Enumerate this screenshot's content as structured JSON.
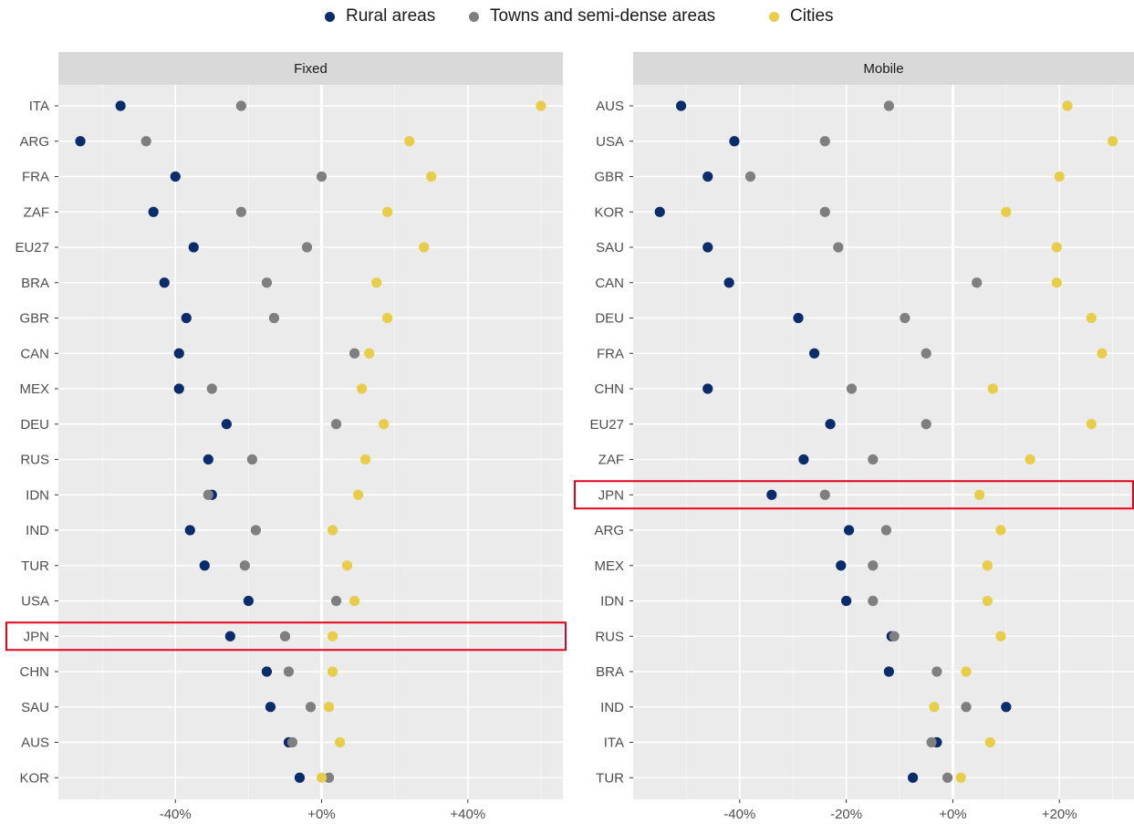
{
  "legend": [
    {
      "label": "Rural areas",
      "color": "#0b2c6b"
    },
    {
      "label": "Towns and semi-dense areas",
      "color": "#7f7f7f"
    },
    {
      "label": "Cities",
      "color": "#e8cd4a"
    }
  ],
  "chart_data": [
    {
      "type": "scatter",
      "title": "Fixed",
      "x_ticks": [
        {
          "value": -40,
          "label": "-40%"
        },
        {
          "value": 0,
          "label": "+0%"
        },
        {
          "value": 40,
          "label": "+40%"
        }
      ],
      "xlim": [
        -72,
        66
      ],
      "highlight": "JPN",
      "categories": [
        "ITA",
        "ARG",
        "FRA",
        "ZAF",
        "EU27",
        "BRA",
        "GBR",
        "CAN",
        "MEX",
        "DEU",
        "RUS",
        "IDN",
        "IND",
        "TUR",
        "USA",
        "JPN",
        "CHN",
        "SAU",
        "AUS",
        "KOR"
      ],
      "series": [
        {
          "name": "Rural areas",
          "color": "#0b2c6b",
          "values": [
            -55,
            -66,
            -40,
            -46,
            -35,
            -43,
            -37,
            -39,
            -39,
            -26,
            -31,
            -30,
            -36,
            -32,
            -20,
            -25,
            -15,
            -14,
            -9,
            -6
          ]
        },
        {
          "name": "Towns and semi-dense areas",
          "color": "#7f7f7f",
          "values": [
            -22,
            -48,
            0,
            -22,
            -4,
            -15,
            -13,
            9,
            -30,
            4,
            -19,
            -31,
            -18,
            -21,
            4,
            -10,
            -9,
            -3,
            -8,
            2
          ]
        },
        {
          "name": "Cities",
          "color": "#e8cd4a",
          "values": [
            60,
            24,
            30,
            18,
            28,
            15,
            18,
            13,
            11,
            17,
            12,
            10,
            3,
            7,
            9,
            3,
            3,
            2,
            5,
            0
          ]
        }
      ]
    },
    {
      "type": "scatter",
      "title": "Mobile",
      "x_ticks": [
        {
          "value": -40,
          "label": "-40%"
        },
        {
          "value": -20,
          "label": "-20%"
        },
        {
          "value": 0,
          "label": "+0%"
        },
        {
          "value": 20,
          "label": "+20%"
        }
      ],
      "xlim": [
        -60,
        34
      ],
      "highlight": "JPN",
      "categories": [
        "AUS",
        "USA",
        "GBR",
        "KOR",
        "SAU",
        "CAN",
        "DEU",
        "FRA",
        "CHN",
        "EU27",
        "ZAF",
        "JPN",
        "ARG",
        "MEX",
        "IDN",
        "RUS",
        "BRA",
        "IND",
        "ITA",
        "TUR"
      ],
      "series": [
        {
          "name": "Rural areas",
          "color": "#0b2c6b",
          "values": [
            -51,
            -41,
            -46,
            -55,
            -46,
            -42,
            -29,
            -26,
            -46,
            -23,
            -28,
            -34,
            -19.5,
            -21,
            -20,
            -11.5,
            -12,
            10,
            -3,
            -7.5
          ]
        },
        {
          "name": "Towns and semi-dense areas",
          "color": "#7f7f7f",
          "values": [
            -12,
            -24,
            -38,
            -24,
            -21.5,
            4.5,
            -9,
            -5,
            -19,
            -5,
            -15,
            -24,
            -12.5,
            -15,
            -15,
            -11,
            -3,
            2.5,
            -4,
            -1
          ]
        },
        {
          "name": "Cities",
          "color": "#e8cd4a",
          "values": [
            21.5,
            30,
            20,
            10,
            19.5,
            19.5,
            26,
            28,
            7.5,
            26,
            14.5,
            5,
            9,
            6.5,
            6.5,
            9,
            2.5,
            -3.5,
            7,
            1.5
          ]
        }
      ]
    }
  ]
}
